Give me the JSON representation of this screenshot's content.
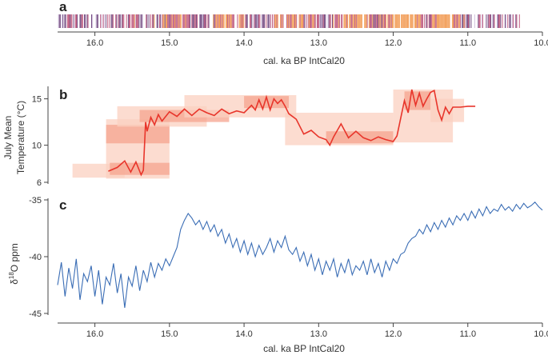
{
  "colors": {
    "axis": "#444444",
    "temperature_line": "#e8352b",
    "temperature_band_light": "#fbd0c0",
    "temperature_band_mid": "#f6a48f",
    "temperature_band_dark": "#ef7d68",
    "isotope_line": "#3a6db5",
    "strip_dark": "#5a2a6a",
    "strip_mid": "#b5406a",
    "strip_light": "#f08c3a",
    "strip_pale": "#c8b6d8"
  },
  "chart_data": [
    {
      "panel": "a",
      "type": "strip",
      "title": "",
      "xlabel": "cal. ka BP IntCal20",
      "xlim": [
        16.5,
        10.0
      ],
      "xticks": [
        16.0,
        15.0,
        14.0,
        13.0,
        12.0,
        11.0,
        10.0
      ],
      "xtick_labels": [
        "16.0",
        "15.0",
        "14.0",
        "13.0",
        "12.0",
        "11.0",
        "10.0"
      ],
      "strip_range": [
        16.5,
        10.3
      ],
      "density_peaks": [
        {
          "age": 16.25,
          "level": 0.45
        },
        {
          "age": 15.6,
          "level": 0.55
        },
        {
          "age": 14.9,
          "level": 0.7
        },
        {
          "age": 14.2,
          "level": 0.75
        },
        {
          "age": 13.3,
          "level": 0.8
        },
        {
          "age": 12.5,
          "level": 0.85
        },
        {
          "age": 11.9,
          "level": 0.95
        },
        {
          "age": 11.3,
          "level": 0.8
        },
        {
          "age": 10.6,
          "level": 0.4
        }
      ]
    },
    {
      "panel": "b",
      "type": "line",
      "ylabel": "July Mean Temperature (°C)",
      "ylabel_lines": [
        "July Mean",
        "Temperature (°C)"
      ],
      "xlim": [
        16.5,
        10.0
      ],
      "ylim": [
        6,
        16
      ],
      "yticks": [
        6,
        10,
        15
      ],
      "ytick_labels": [
        "6",
        "10",
        "15"
      ],
      "series": [
        {
          "name": "Temperature",
          "x": [
            15.82,
            15.7,
            15.6,
            15.52,
            15.45,
            15.38,
            15.35,
            15.32,
            15.3,
            15.25,
            15.2,
            15.15,
            15.1,
            15.0,
            14.9,
            14.8,
            14.7,
            14.6,
            14.5,
            14.4,
            14.3,
            14.2,
            14.1,
            14.0,
            13.9,
            13.85,
            13.8,
            13.75,
            13.7,
            13.65,
            13.6,
            13.55,
            13.5,
            13.45,
            13.4,
            13.3,
            13.2,
            13.1,
            13.0,
            12.9,
            12.85,
            12.8,
            12.7,
            12.6,
            12.5,
            12.4,
            12.3,
            12.2,
            12.1,
            12.0,
            11.95,
            11.85,
            11.8,
            11.75,
            11.7,
            11.65,
            11.6,
            11.55,
            11.5,
            11.45,
            11.4,
            11.35,
            11.3,
            11.25,
            11.2,
            11.1,
            11.0,
            10.9
          ],
          "y": [
            7.2,
            7.6,
            8.3,
            7.1,
            8.2,
            6.8,
            7.3,
            12.5,
            11.5,
            13.0,
            12.2,
            13.3,
            12.6,
            13.6,
            13.1,
            13.9,
            13.2,
            13.9,
            13.5,
            13.2,
            13.9,
            13.4,
            13.7,
            13.5,
            14.3,
            13.8,
            14.9,
            13.9,
            15.2,
            13.8,
            15.0,
            14.5,
            14.9,
            14.2,
            13.4,
            12.8,
            11.2,
            11.6,
            10.9,
            10.6,
            10.0,
            10.9,
            12.3,
            10.8,
            11.5,
            10.8,
            10.5,
            10.9,
            10.6,
            10.4,
            11.0,
            14.8,
            13.5,
            16.0,
            14.3,
            15.6,
            14.2,
            15.0,
            15.7,
            15.9,
            13.8,
            12.7,
            14.1,
            13.4,
            14.1,
            14.1,
            14.2,
            14.2
          ]
        }
      ],
      "uncertainty_bands": [
        {
          "x0": 16.3,
          "x1": 15.6,
          "y0": 6.5,
          "y1": 8.0,
          "level": "light"
        },
        {
          "x0": 15.85,
          "x1": 15.0,
          "y0": 6.4,
          "y1": 12.8,
          "level": "light"
        },
        {
          "x0": 15.85,
          "x1": 15.0,
          "y0": 10.2,
          "y1": 12.2,
          "level": "mid"
        },
        {
          "x0": 15.8,
          "x1": 15.0,
          "y0": 6.8,
          "y1": 8.1,
          "level": "mid"
        },
        {
          "x0": 15.7,
          "x1": 14.5,
          "y0": 12.0,
          "y1": 14.2,
          "level": "light"
        },
        {
          "x0": 15.4,
          "x1": 14.2,
          "y0": 12.5,
          "y1": 13.8,
          "level": "mid"
        },
        {
          "x0": 14.8,
          "x1": 13.3,
          "y0": 13.0,
          "y1": 15.4,
          "level": "light"
        },
        {
          "x0": 14.0,
          "x1": 13.4,
          "y0": 14.0,
          "y1": 15.3,
          "level": "mid"
        },
        {
          "x0": 13.45,
          "x1": 12.0,
          "y0": 10.0,
          "y1": 13.5,
          "level": "light"
        },
        {
          "x0": 12.9,
          "x1": 12.0,
          "y0": 10.2,
          "y1": 11.5,
          "level": "mid"
        },
        {
          "x0": 12.0,
          "x1": 11.2,
          "y0": 10.3,
          "y1": 16.0,
          "level": "light"
        },
        {
          "x0": 11.85,
          "x1": 11.5,
          "y0": 13.8,
          "y1": 15.8,
          "level": "mid"
        },
        {
          "x0": 11.5,
          "x1": 11.05,
          "y0": 12.5,
          "y1": 15.0,
          "level": "light"
        }
      ]
    },
    {
      "panel": "c",
      "type": "line",
      "ylabel": "δ18O ppm",
      "ylabel_parts": {
        "prefix": "δ",
        "superscript": "18",
        "suffix": "O ppm"
      },
      "xlabel": "cal. ka BP IntCal20",
      "xlim": [
        16.5,
        10.0
      ],
      "ylim": [
        -45,
        -35
      ],
      "yticks": [
        -35,
        -40,
        -45
      ],
      "ytick_labels": [
        "-35",
        "-40",
        "-45"
      ],
      "xticks": [
        16.0,
        15.0,
        14.0,
        13.0,
        12.0,
        11.0,
        10.0
      ],
      "xtick_labels": [
        "16.0",
        "15.0",
        "14.0",
        "13.0",
        "12.0",
        "11.0",
        "10.0"
      ],
      "series": [
        {
          "name": "δ18O",
          "x": [
            16.5,
            16.45,
            16.4,
            16.35,
            16.3,
            16.25,
            16.2,
            16.15,
            16.1,
            16.05,
            16.0,
            15.95,
            15.9,
            15.85,
            15.8,
            15.75,
            15.7,
            15.65,
            15.6,
            15.55,
            15.5,
            15.45,
            15.4,
            15.35,
            15.3,
            15.25,
            15.2,
            15.15,
            15.1,
            15.05,
            15.0,
            14.95,
            14.9,
            14.85,
            14.8,
            14.75,
            14.7,
            14.65,
            14.6,
            14.55,
            14.5,
            14.45,
            14.4,
            14.35,
            14.3,
            14.25,
            14.2,
            14.15,
            14.1,
            14.05,
            14.0,
            13.95,
            13.9,
            13.85,
            13.8,
            13.75,
            13.7,
            13.65,
            13.6,
            13.55,
            13.5,
            13.45,
            13.4,
            13.35,
            13.3,
            13.25,
            13.2,
            13.15,
            13.1,
            13.05,
            13.0,
            12.95,
            12.9,
            12.85,
            12.8,
            12.75,
            12.7,
            12.65,
            12.6,
            12.55,
            12.5,
            12.45,
            12.4,
            12.35,
            12.3,
            12.25,
            12.2,
            12.15,
            12.1,
            12.05,
            12.0,
            11.95,
            11.9,
            11.85,
            11.8,
            11.75,
            11.7,
            11.65,
            11.6,
            11.55,
            11.5,
            11.45,
            11.4,
            11.35,
            11.3,
            11.25,
            11.2,
            11.15,
            11.1,
            11.05,
            11.0,
            10.95,
            10.9,
            10.85,
            10.8,
            10.75,
            10.7,
            10.65,
            10.6,
            10.55,
            10.5,
            10.45,
            10.4,
            10.35,
            10.3,
            10.25,
            10.2,
            10.15,
            10.1,
            10.05,
            10.0
          ],
          "y": [
            -42.5,
            -40.5,
            -43.5,
            -41.0,
            -42.8,
            -40.2,
            -43.8,
            -41.5,
            -42.2,
            -40.8,
            -43.5,
            -41.2,
            -44.2,
            -41.8,
            -42.5,
            -40.6,
            -43.2,
            -41.5,
            -44.5,
            -41.8,
            -42.6,
            -40.8,
            -43.0,
            -41.2,
            -42.2,
            -40.5,
            -41.8,
            -40.6,
            -41.2,
            -40.2,
            -40.8,
            -40.0,
            -39.2,
            -37.6,
            -36.8,
            -36.2,
            -36.6,
            -37.2,
            -36.8,
            -37.6,
            -36.9,
            -37.8,
            -37.2,
            -38.2,
            -37.6,
            -38.8,
            -38.0,
            -39.2,
            -38.4,
            -39.6,
            -38.6,
            -39.8,
            -38.8,
            -40.0,
            -39.0,
            -39.8,
            -39.2,
            -38.4,
            -39.6,
            -38.6,
            -39.2,
            -38.2,
            -39.4,
            -39.8,
            -39.2,
            -40.4,
            -39.6,
            -40.8,
            -39.8,
            -41.2,
            -40.2,
            -41.6,
            -40.4,
            -41.2,
            -40.2,
            -41.8,
            -40.6,
            -41.4,
            -40.2,
            -41.6,
            -40.8,
            -41.2,
            -40.4,
            -41.6,
            -40.2,
            -41.4,
            -40.6,
            -41.8,
            -40.4,
            -41.2,
            -40.2,
            -40.6,
            -39.8,
            -39.6,
            -38.8,
            -38.4,
            -38.2,
            -37.6,
            -38.0,
            -37.2,
            -37.8,
            -37.0,
            -37.6,
            -36.8,
            -37.4,
            -36.6,
            -37.2,
            -36.4,
            -36.8,
            -36.2,
            -36.8,
            -36.0,
            -36.6,
            -35.8,
            -36.4,
            -35.6,
            -36.2,
            -35.8,
            -36.0,
            -35.4,
            -35.9,
            -35.6,
            -36.0,
            -35.4,
            -35.8,
            -35.3,
            -35.7,
            -35.5,
            -35.2,
            -35.6,
            -35.9
          ]
        }
      ]
    }
  ]
}
